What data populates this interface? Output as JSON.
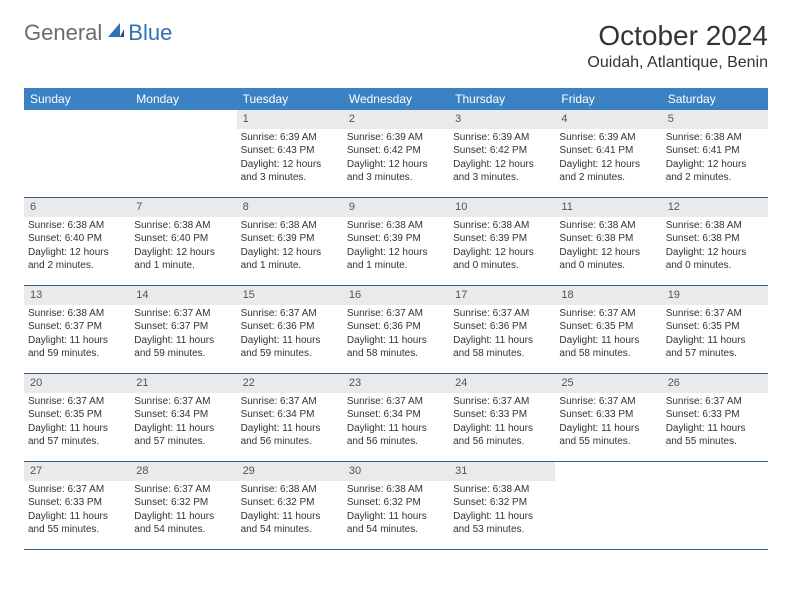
{
  "logo": {
    "text_general": "General",
    "text_blue": "Blue"
  },
  "title": "October 2024",
  "location": "Ouidah, Atlantique, Benin",
  "colors": {
    "header_bg": "#3b82c4",
    "header_text": "#ffffff",
    "daynum_bg": "#e9eaeb",
    "row_border": "#2f5f8f",
    "logo_gray": "#6b6b6b",
    "logo_blue": "#2f73b5"
  },
  "day_headers": [
    "Sunday",
    "Monday",
    "Tuesday",
    "Wednesday",
    "Thursday",
    "Friday",
    "Saturday"
  ],
  "weeks": [
    [
      {
        "n": "",
        "sr": "",
        "ss": "",
        "dl": ""
      },
      {
        "n": "",
        "sr": "",
        "ss": "",
        "dl": ""
      },
      {
        "n": "1",
        "sr": "Sunrise: 6:39 AM",
        "ss": "Sunset: 6:43 PM",
        "dl": "Daylight: 12 hours and 3 minutes."
      },
      {
        "n": "2",
        "sr": "Sunrise: 6:39 AM",
        "ss": "Sunset: 6:42 PM",
        "dl": "Daylight: 12 hours and 3 minutes."
      },
      {
        "n": "3",
        "sr": "Sunrise: 6:39 AM",
        "ss": "Sunset: 6:42 PM",
        "dl": "Daylight: 12 hours and 3 minutes."
      },
      {
        "n": "4",
        "sr": "Sunrise: 6:39 AM",
        "ss": "Sunset: 6:41 PM",
        "dl": "Daylight: 12 hours and 2 minutes."
      },
      {
        "n": "5",
        "sr": "Sunrise: 6:38 AM",
        "ss": "Sunset: 6:41 PM",
        "dl": "Daylight: 12 hours and 2 minutes."
      }
    ],
    [
      {
        "n": "6",
        "sr": "Sunrise: 6:38 AM",
        "ss": "Sunset: 6:40 PM",
        "dl": "Daylight: 12 hours and 2 minutes."
      },
      {
        "n": "7",
        "sr": "Sunrise: 6:38 AM",
        "ss": "Sunset: 6:40 PM",
        "dl": "Daylight: 12 hours and 1 minute."
      },
      {
        "n": "8",
        "sr": "Sunrise: 6:38 AM",
        "ss": "Sunset: 6:39 PM",
        "dl": "Daylight: 12 hours and 1 minute."
      },
      {
        "n": "9",
        "sr": "Sunrise: 6:38 AM",
        "ss": "Sunset: 6:39 PM",
        "dl": "Daylight: 12 hours and 1 minute."
      },
      {
        "n": "10",
        "sr": "Sunrise: 6:38 AM",
        "ss": "Sunset: 6:39 PM",
        "dl": "Daylight: 12 hours and 0 minutes."
      },
      {
        "n": "11",
        "sr": "Sunrise: 6:38 AM",
        "ss": "Sunset: 6:38 PM",
        "dl": "Daylight: 12 hours and 0 minutes."
      },
      {
        "n": "12",
        "sr": "Sunrise: 6:38 AM",
        "ss": "Sunset: 6:38 PM",
        "dl": "Daylight: 12 hours and 0 minutes."
      }
    ],
    [
      {
        "n": "13",
        "sr": "Sunrise: 6:38 AM",
        "ss": "Sunset: 6:37 PM",
        "dl": "Daylight: 11 hours and 59 minutes."
      },
      {
        "n": "14",
        "sr": "Sunrise: 6:37 AM",
        "ss": "Sunset: 6:37 PM",
        "dl": "Daylight: 11 hours and 59 minutes."
      },
      {
        "n": "15",
        "sr": "Sunrise: 6:37 AM",
        "ss": "Sunset: 6:36 PM",
        "dl": "Daylight: 11 hours and 59 minutes."
      },
      {
        "n": "16",
        "sr": "Sunrise: 6:37 AM",
        "ss": "Sunset: 6:36 PM",
        "dl": "Daylight: 11 hours and 58 minutes."
      },
      {
        "n": "17",
        "sr": "Sunrise: 6:37 AM",
        "ss": "Sunset: 6:36 PM",
        "dl": "Daylight: 11 hours and 58 minutes."
      },
      {
        "n": "18",
        "sr": "Sunrise: 6:37 AM",
        "ss": "Sunset: 6:35 PM",
        "dl": "Daylight: 11 hours and 58 minutes."
      },
      {
        "n": "19",
        "sr": "Sunrise: 6:37 AM",
        "ss": "Sunset: 6:35 PM",
        "dl": "Daylight: 11 hours and 57 minutes."
      }
    ],
    [
      {
        "n": "20",
        "sr": "Sunrise: 6:37 AM",
        "ss": "Sunset: 6:35 PM",
        "dl": "Daylight: 11 hours and 57 minutes."
      },
      {
        "n": "21",
        "sr": "Sunrise: 6:37 AM",
        "ss": "Sunset: 6:34 PM",
        "dl": "Daylight: 11 hours and 57 minutes."
      },
      {
        "n": "22",
        "sr": "Sunrise: 6:37 AM",
        "ss": "Sunset: 6:34 PM",
        "dl": "Daylight: 11 hours and 56 minutes."
      },
      {
        "n": "23",
        "sr": "Sunrise: 6:37 AM",
        "ss": "Sunset: 6:34 PM",
        "dl": "Daylight: 11 hours and 56 minutes."
      },
      {
        "n": "24",
        "sr": "Sunrise: 6:37 AM",
        "ss": "Sunset: 6:33 PM",
        "dl": "Daylight: 11 hours and 56 minutes."
      },
      {
        "n": "25",
        "sr": "Sunrise: 6:37 AM",
        "ss": "Sunset: 6:33 PM",
        "dl": "Daylight: 11 hours and 55 minutes."
      },
      {
        "n": "26",
        "sr": "Sunrise: 6:37 AM",
        "ss": "Sunset: 6:33 PM",
        "dl": "Daylight: 11 hours and 55 minutes."
      }
    ],
    [
      {
        "n": "27",
        "sr": "Sunrise: 6:37 AM",
        "ss": "Sunset: 6:33 PM",
        "dl": "Daylight: 11 hours and 55 minutes."
      },
      {
        "n": "28",
        "sr": "Sunrise: 6:37 AM",
        "ss": "Sunset: 6:32 PM",
        "dl": "Daylight: 11 hours and 54 minutes."
      },
      {
        "n": "29",
        "sr": "Sunrise: 6:38 AM",
        "ss": "Sunset: 6:32 PM",
        "dl": "Daylight: 11 hours and 54 minutes."
      },
      {
        "n": "30",
        "sr": "Sunrise: 6:38 AM",
        "ss": "Sunset: 6:32 PM",
        "dl": "Daylight: 11 hours and 54 minutes."
      },
      {
        "n": "31",
        "sr": "Sunrise: 6:38 AM",
        "ss": "Sunset: 6:32 PM",
        "dl": "Daylight: 11 hours and 53 minutes."
      },
      {
        "n": "",
        "sr": "",
        "ss": "",
        "dl": ""
      },
      {
        "n": "",
        "sr": "",
        "ss": "",
        "dl": ""
      }
    ]
  ]
}
